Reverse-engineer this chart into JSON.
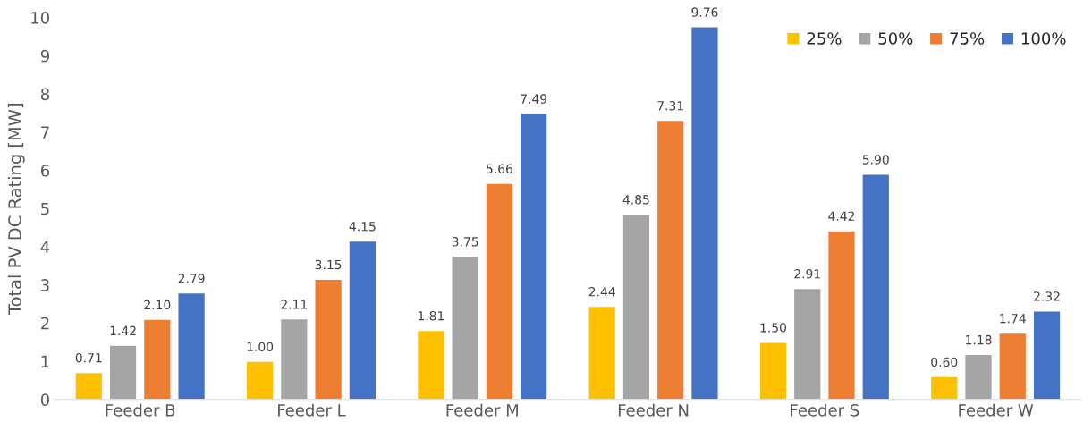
{
  "chart_data": {
    "type": "bar",
    "ylabel": "Total PV DC Rating [MW]",
    "categories": [
      "Feeder B",
      "Feeder L",
      "Feeder M",
      "Feeder N",
      "Feeder S",
      "Feeder W"
    ],
    "series": [
      {
        "name": "25%",
        "color": "#ffc000",
        "values": [
          0.71,
          1.0,
          1.81,
          2.44,
          1.5,
          0.6
        ],
        "value_labels": [
          "0.71",
          "1.00",
          "1.81",
          "2.44",
          "1.50",
          "0.60"
        ]
      },
      {
        "name": "50%",
        "color": "#a5a5a5",
        "values": [
          1.42,
          2.11,
          3.75,
          4.85,
          2.91,
          1.18
        ],
        "value_labels": [
          "1.42",
          "2.11",
          "3.75",
          "4.85",
          "2.91",
          "1.18"
        ]
      },
      {
        "name": "75%",
        "color": "#ed7d31",
        "values": [
          2.1,
          3.15,
          5.66,
          7.31,
          4.42,
          1.74
        ],
        "value_labels": [
          "2.10",
          "3.15",
          "5.66",
          "7.31",
          "4.42",
          "1.74"
        ]
      },
      {
        "name": "100%",
        "color": "#4472c4",
        "values": [
          2.79,
          4.15,
          7.49,
          9.76,
          5.9,
          2.32
        ],
        "value_labels": [
          "2.79",
          "4.15",
          "7.49",
          "9.76",
          "5.90",
          "2.32"
        ]
      }
    ],
    "ylim": [
      0,
      10
    ],
    "yticks": [
      0,
      1,
      2,
      3,
      4,
      5,
      6,
      7,
      8,
      9,
      10
    ],
    "grid": false,
    "legend": "top right"
  }
}
